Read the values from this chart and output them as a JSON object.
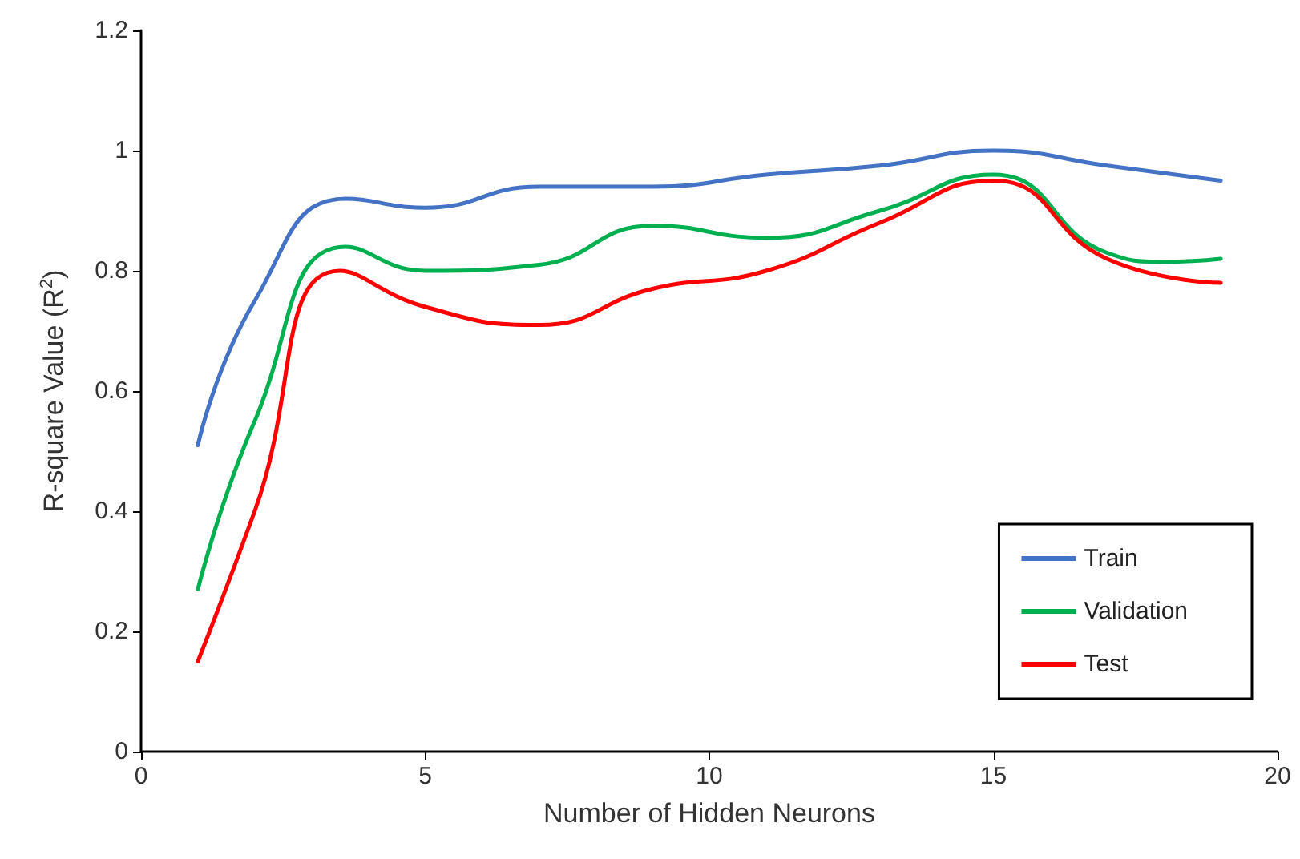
{
  "chart_data": {
    "type": "line",
    "xlabel": "Number of Hidden Neurons",
    "ylabel": "R-square Value (R$^{2}$)",
    "xlim": [
      0,
      20
    ],
    "xticks": [
      0,
      5,
      10,
      15,
      20
    ],
    "ylim": [
      0,
      1.2
    ],
    "yticks": [
      0,
      0.2,
      0.4,
      0.6,
      0.8,
      1,
      1.2
    ],
    "grid": false,
    "legend": "bottom right",
    "marker": "none",
    "line_style": "solid",
    "series": [
      {
        "name": "Train",
        "color": "#4472c4",
        "x": [
          1,
          2,
          3.6,
          5,
          7,
          9,
          11,
          13,
          15,
          17,
          19
        ],
        "values": [
          0.51,
          0.75,
          0.92,
          0.905,
          0.94,
          0.94,
          0.96,
          0.975,
          1.0,
          0.975,
          0.95
        ]
      },
      {
        "name": "Validation",
        "color": "#00b050",
        "x": [
          1,
          2,
          3.6,
          5,
          7,
          9,
          11,
          13,
          15,
          17,
          18,
          19
        ],
        "values": [
          0.27,
          0.55,
          0.84,
          0.8,
          0.81,
          0.875,
          0.855,
          0.9,
          0.96,
          0.83,
          0.815,
          0.82
        ]
      },
      {
        "name": "Test",
        "color": "#ff0000",
        "x": [
          1,
          2,
          3.5,
          5,
          7,
          9,
          11,
          13,
          15,
          17,
          19
        ],
        "values": [
          0.15,
          0.4,
          0.8,
          0.74,
          0.71,
          0.77,
          0.8,
          0.88,
          0.95,
          0.82,
          0.78
        ]
      }
    ]
  }
}
